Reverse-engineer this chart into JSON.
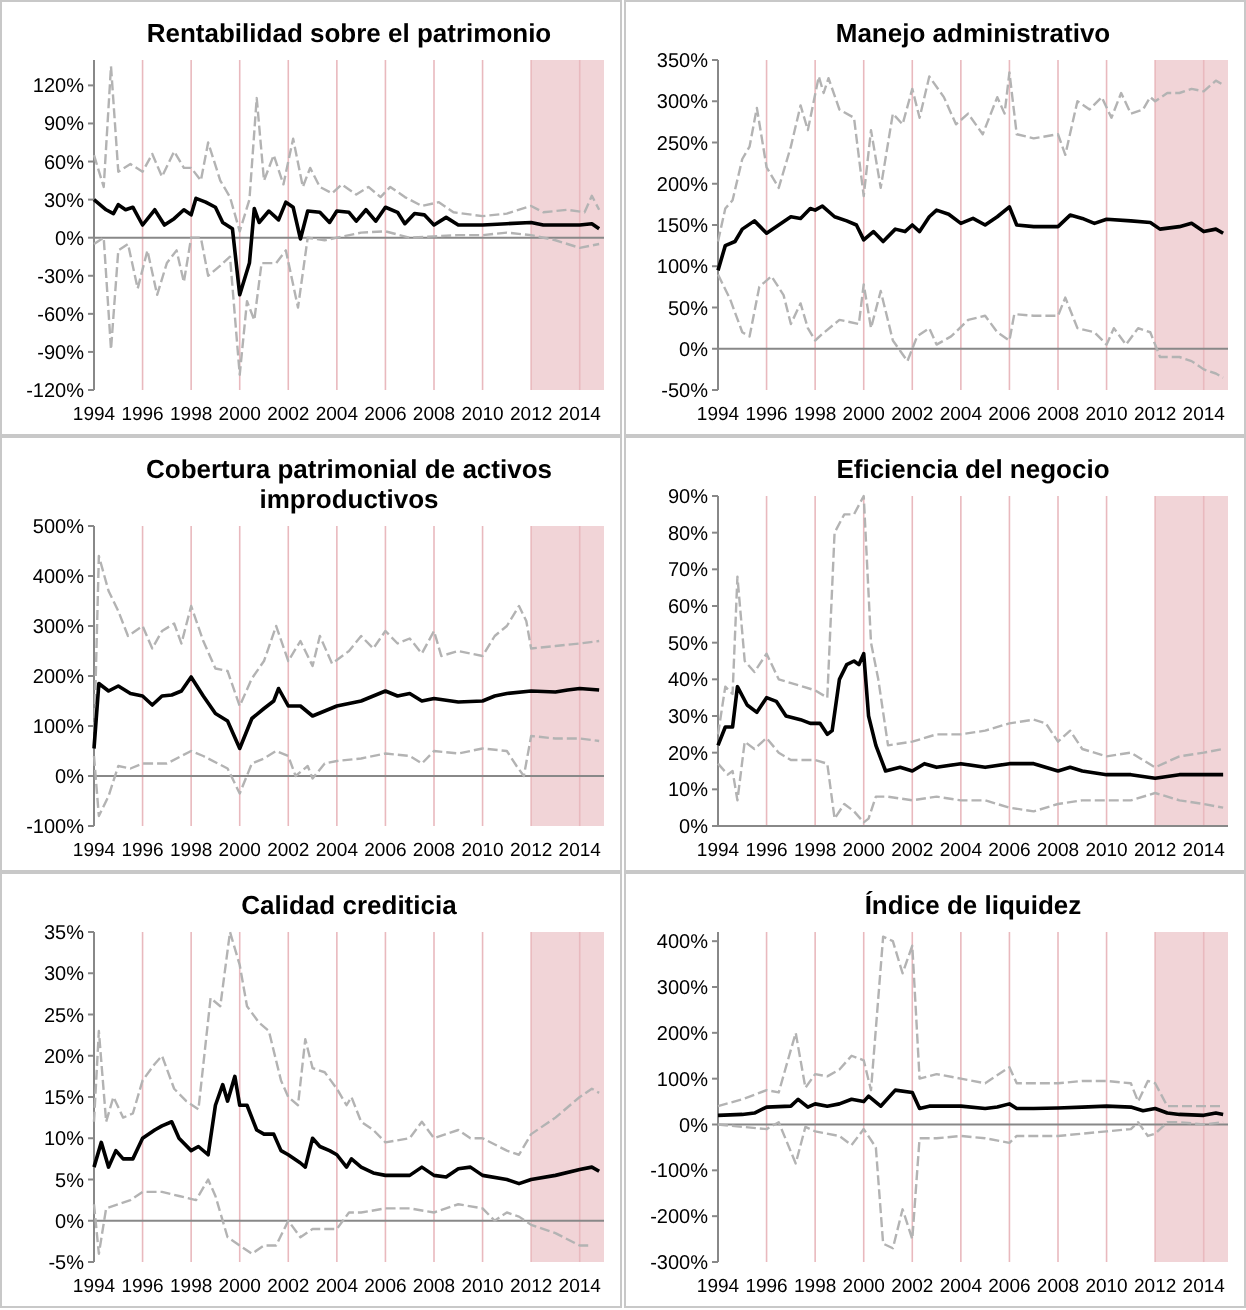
{
  "chart_data": [
    {
      "type": "line",
      "title": "Rentabilidad sobre el patrimonio",
      "grid": "x",
      "xlim": [
        1994,
        2015
      ],
      "xticks": [
        1994,
        1996,
        1998,
        2000,
        2002,
        2004,
        2006,
        2008,
        2010,
        2012,
        2014
      ],
      "ylim": [
        -120,
        140
      ],
      "yticks": [
        {
          "value": -120,
          "label": "-120%"
        },
        {
          "value": -90,
          "label": "-90%"
        },
        {
          "value": -60,
          "label": "-60%"
        },
        {
          "value": -30,
          "label": "-30%"
        },
        {
          "value": 0,
          "label": "0%"
        },
        {
          "value": 30,
          "label": "30%"
        },
        {
          "value": 60,
          "label": "60%"
        },
        {
          "value": 90,
          "label": "90%"
        },
        {
          "value": 120,
          "label": "120%"
        }
      ],
      "bands": [
        {
          "axis": "x",
          "from": 2012,
          "to": 2015,
          "label": null,
          "color": "#efcdd0"
        }
      ],
      "series": [
        {
          "color": "#b3b3b3",
          "line_style": "dashed",
          "x": [
            1994,
            1994.4,
            1994.7,
            1995,
            1995.5,
            1996,
            1996.4,
            1996.8,
            1997.3,
            1997.7,
            1998,
            1998.4,
            1998.7,
            1999.2,
            1999.6,
            2000,
            2000.4,
            2000.7,
            2001,
            2001.4,
            2001.8,
            2002.2,
            2002.6,
            2002.9,
            2003.3,
            2003.8,
            2004.2,
            2004.8,
            2005.3,
            2005.8,
            2006.2,
            2006.8,
            2007.5,
            2008.2,
            2008.8,
            2010,
            2011,
            2012,
            2012.5,
            2013.5,
            2014.2,
            2014.5,
            2014.8
          ],
          "values": [
            65,
            40,
            135,
            52,
            58,
            52,
            66,
            48,
            68,
            55,
            55,
            45,
            75,
            45,
            32,
            5,
            30,
            110,
            45,
            65,
            42,
            78,
            40,
            55,
            40,
            35,
            42,
            34,
            40,
            32,
            40,
            32,
            25,
            28,
            20,
            17,
            19,
            25,
            20,
            22,
            20,
            33,
            22
          ]
        },
        {
          "color": "#b3b3b3",
          "line_style": "dashed",
          "x": [
            1994,
            1994.4,
            1994.7,
            1995,
            1995.4,
            1995.8,
            1996.2,
            1996.6,
            1997,
            1997.4,
            1997.7,
            1998,
            1998.4,
            1998.7,
            1999.2,
            1999.6,
            2000,
            2000.3,
            2000.6,
            2000.9,
            2001.5,
            2001.9,
            2002.4,
            2002.8,
            2003.5,
            2004,
            2005,
            2006,
            2007,
            2008,
            2009,
            2010,
            2011,
            2012,
            2013,
            2014,
            2014.8
          ],
          "values": [
            -5,
            0,
            -88,
            -10,
            -5,
            -40,
            -10,
            -45,
            -20,
            -10,
            -35,
            0,
            0,
            -30,
            -22,
            -15,
            -108,
            -50,
            -65,
            -20,
            -20,
            -10,
            -55,
            0,
            -2,
            0,
            4,
            5,
            0,
            1,
            2,
            2,
            4,
            2,
            -2,
            -8,
            -5
          ]
        },
        {
          "color": "#000000",
          "line_style": "solid",
          "x": [
            1994,
            1994.5,
            1994.8,
            1995,
            1995.3,
            1995.6,
            1996,
            1996.5,
            1996.9,
            1997.3,
            1997.7,
            1998,
            1998.2,
            1998.6,
            1999,
            1999.3,
            1999.7,
            2000,
            2000.4,
            2000.6,
            2000.8,
            2001.2,
            2001.6,
            2001.9,
            2002.2,
            2002.5,
            2002.8,
            2003.3,
            2003.7,
            2004,
            2004.5,
            2004.8,
            2005.2,
            2005.6,
            2006,
            2006.5,
            2006.8,
            2007.2,
            2007.6,
            2008,
            2008.5,
            2009,
            2010,
            2011,
            2012,
            2012.5,
            2013,
            2014,
            2014.5,
            2014.8
          ],
          "values": [
            30,
            22,
            19,
            26,
            22,
            24,
            10,
            22,
            10,
            15,
            22,
            18,
            31,
            28,
            24,
            12,
            7,
            -45,
            -20,
            23,
            12,
            21,
            14,
            28,
            24,
            -1,
            21,
            20,
            12,
            21,
            20,
            13,
            22,
            13,
            24,
            20,
            11,
            19,
            18,
            10,
            16,
            10,
            10,
            11,
            12,
            10,
            10,
            10,
            11,
            7
          ]
        }
      ]
    },
    {
      "type": "line",
      "title": "Manejo administrativo",
      "grid": "x",
      "xlim": [
        1994,
        2015
      ],
      "xticks": [
        1994,
        1996,
        1998,
        2000,
        2002,
        2004,
        2006,
        2008,
        2010,
        2012,
        2014
      ],
      "ylim": [
        -50,
        350
      ],
      "yticks": [
        {
          "value": -50,
          "label": "-50%"
        },
        {
          "value": 0,
          "label": "0%"
        },
        {
          "value": 50,
          "label": "50%"
        },
        {
          "value": 100,
          "label": "100%"
        },
        {
          "value": 150,
          "label": "150%"
        },
        {
          "value": 200,
          "label": "200%"
        },
        {
          "value": 250,
          "label": "250%"
        },
        {
          "value": 300,
          "label": "300%"
        },
        {
          "value": 350,
          "label": "350%"
        }
      ],
      "bands": [
        {
          "axis": "x",
          "from": 2012,
          "to": 2015,
          "label": null,
          "color": "#efcdd0"
        }
      ],
      "series": [
        {
          "color": "#b3b3b3",
          "line_style": "dashed",
          "x": [
            1994,
            1994.3,
            1994.6,
            1995,
            1995.3,
            1995.6,
            1996,
            1996.5,
            1997,
            1997.4,
            1997.7,
            1998.15,
            1998.35,
            1998.55,
            1999,
            1999.6,
            2000,
            2000.3,
            2000.7,
            2001.2,
            2001.6,
            2002,
            2002.3,
            2002.7,
            2003.3,
            2003.8,
            2004.3,
            2004.9,
            2005.5,
            2005.8,
            2006,
            2006.3,
            2007,
            2008,
            2008.3,
            2008.8,
            2009.3,
            2009.8,
            2010.2,
            2010.6,
            2011,
            2011.5,
            2011.8,
            2012,
            2012.5,
            2013,
            2013.5,
            2014,
            2014.5,
            2014.8
          ],
          "values": [
            130,
            170,
            180,
            230,
            245,
            292,
            220,
            195,
            245,
            295,
            265,
            330,
            310,
            328,
            290,
            280,
            185,
            265,
            195,
            285,
            272,
            315,
            280,
            330,
            305,
            272,
            285,
            260,
            305,
            285,
            335,
            260,
            255,
            260,
            235,
            300,
            290,
            305,
            280,
            310,
            285,
            290,
            305,
            300,
            310,
            310,
            315,
            312,
            325,
            320
          ]
        },
        {
          "color": "#b3b3b3",
          "line_style": "dashed",
          "x": [
            1994,
            1994.5,
            1995,
            1995.3,
            1995.7,
            1996.2,
            1996.7,
            1997,
            1997.4,
            1997.7,
            1998,
            1998.3,
            1999,
            1999.8,
            2000,
            2000.3,
            2000.7,
            2001.2,
            2001.8,
            2002.2,
            2002.7,
            2003,
            2003.6,
            2004.3,
            2005,
            2005.5,
            2006,
            2006.2,
            2007,
            2008,
            2008.3,
            2008.8,
            2009.5,
            2010,
            2010.3,
            2010.8,
            2011.3,
            2011.8,
            2012.2,
            2013,
            2013.5,
            2014,
            2014.5,
            2014.8
          ],
          "values": [
            90,
            60,
            20,
            15,
            75,
            88,
            65,
            30,
            55,
            25,
            10,
            18,
            35,
            30,
            78,
            25,
            70,
            10,
            -15,
            15,
            25,
            5,
            15,
            35,
            40,
            20,
            10,
            42,
            40,
            40,
            62,
            25,
            20,
            5,
            25,
            5,
            25,
            20,
            -10,
            -10,
            -15,
            -25,
            -30,
            -35
          ]
        },
        {
          "color": "#000000",
          "line_style": "solid",
          "x": [
            1994,
            1994.3,
            1994.7,
            1995,
            1995.5,
            1996,
            1996.5,
            1997,
            1997.4,
            1997.8,
            1998,
            1998.3,
            1998.8,
            1999.3,
            1999.7,
            2000,
            2000.4,
            2000.8,
            2001.3,
            2001.7,
            2002,
            2002.3,
            2002.7,
            2003,
            2003.5,
            2004,
            2004.5,
            2005,
            2005.5,
            2006,
            2006.3,
            2007,
            2008,
            2008.5,
            2009,
            2009.5,
            2010,
            2011,
            2011.8,
            2012.2,
            2013,
            2013.5,
            2014,
            2014.5,
            2014.8
          ],
          "values": [
            95,
            125,
            130,
            145,
            155,
            140,
            150,
            160,
            158,
            170,
            168,
            173,
            160,
            155,
            150,
            132,
            142,
            130,
            145,
            142,
            150,
            142,
            160,
            168,
            163,
            152,
            158,
            150,
            160,
            172,
            150,
            148,
            148,
            162,
            158,
            152,
            157,
            155,
            153,
            145,
            148,
            152,
            142,
            145,
            140
          ]
        }
      ]
    },
    {
      "type": "line",
      "title": "Cobertura patrimonial de activos improductivos",
      "grid": "x",
      "xlim": [
        1994,
        2015
      ],
      "xticks": [
        1994,
        1996,
        1998,
        2000,
        2002,
        2004,
        2006,
        2008,
        2010,
        2012,
        2014
      ],
      "ylim": [
        -100,
        500
      ],
      "yticks": [
        {
          "value": -100,
          "label": "-100%"
        },
        {
          "value": 0,
          "label": "0%"
        },
        {
          "value": 100,
          "label": "100%"
        },
        {
          "value": 200,
          "label": "200%"
        },
        {
          "value": 300,
          "label": "300%"
        },
        {
          "value": 400,
          "label": "400%"
        },
        {
          "value": 500,
          "label": "500%"
        }
      ],
      "bands": [
        {
          "axis": "x",
          "from": 2012,
          "to": 2015,
          "label": null,
          "color": "#efcdd0"
        }
      ],
      "series": [
        {
          "color": "#b3b3b3",
          "line_style": "dashed",
          "x": [
            1994,
            1994.2,
            1994.6,
            1995,
            1995.4,
            1996,
            1996.4,
            1996.8,
            1997.3,
            1997.6,
            1998,
            1998.5,
            1999,
            1999.5,
            2000,
            2000.5,
            2001,
            2001.5,
            2002,
            2002.5,
            2003,
            2003.3,
            2003.8,
            2004.5,
            2005,
            2005.5,
            2006,
            2006.5,
            2007,
            2007.5,
            2008,
            2008.3,
            2009,
            2010,
            2010.5,
            2011,
            2011.5,
            2011.8,
            2012,
            2013,
            2014,
            2014.8
          ],
          "values": [
            60,
            440,
            370,
            330,
            280,
            300,
            255,
            290,
            305,
            265,
            340,
            270,
            215,
            210,
            140,
            195,
            230,
            300,
            230,
            270,
            220,
            280,
            225,
            250,
            280,
            255,
            290,
            265,
            275,
            245,
            290,
            240,
            250,
            240,
            280,
            300,
            340,
            310,
            255,
            260,
            265,
            270
          ]
        },
        {
          "color": "#b3b3b3",
          "line_style": "dashed",
          "x": [
            1994,
            1994.2,
            1994.6,
            1995,
            1995.5,
            1996,
            1997,
            1998,
            1998.5,
            1999.5,
            2000,
            2000.5,
            2001,
            2001.5,
            2002,
            2002.3,
            2002.8,
            2003,
            2003.5,
            2004,
            2005,
            2006,
            2007,
            2007.5,
            2008,
            2009,
            2010,
            2011,
            2011.4,
            2011.7,
            2012,
            2013,
            2014,
            2014.8
          ],
          "values": [
            40,
            -80,
            -40,
            20,
            15,
            25,
            25,
            50,
            40,
            15,
            -35,
            25,
            35,
            50,
            40,
            0,
            20,
            -5,
            25,
            30,
            35,
            45,
            40,
            25,
            50,
            45,
            55,
            50,
            20,
            0,
            80,
            75,
            75,
            70
          ]
        },
        {
          "color": "#000000",
          "line_style": "solid",
          "x": [
            1994,
            1994.2,
            1994.6,
            1995,
            1995.5,
            1996,
            1996.4,
            1996.8,
            1997.2,
            1997.6,
            1998,
            1998.5,
            1999,
            1999.5,
            2000,
            2000.5,
            2001,
            2001.4,
            2001.6,
            2002,
            2002.5,
            2003,
            2003.5,
            2004,
            2005,
            2005.5,
            2006,
            2006.5,
            2007,
            2007.5,
            2008,
            2009,
            2010,
            2010.5,
            2011,
            2012,
            2013,
            2013.5,
            2014,
            2014.8
          ],
          "values": [
            55,
            185,
            170,
            180,
            165,
            160,
            142,
            160,
            162,
            170,
            198,
            160,
            125,
            110,
            55,
            115,
            135,
            150,
            175,
            140,
            140,
            120,
            130,
            140,
            150,
            160,
            170,
            160,
            165,
            150,
            155,
            148,
            150,
            160,
            165,
            170,
            168,
            172,
            175,
            172
          ]
        }
      ]
    },
    {
      "type": "line",
      "title": "Eficiencia del negocio",
      "grid": "x",
      "xlim": [
        1994,
        2015
      ],
      "xticks": [
        1994,
        1996,
        1998,
        2000,
        2002,
        2004,
        2006,
        2008,
        2010,
        2012,
        2014
      ],
      "ylim": [
        0,
        90
      ],
      "yticks": [
        {
          "value": 0,
          "label": "0%"
        },
        {
          "value": 10,
          "label": "10%"
        },
        {
          "value": 20,
          "label": "20%"
        },
        {
          "value": 30,
          "label": "30%"
        },
        {
          "value": 40,
          "label": "40%"
        },
        {
          "value": 50,
          "label": "50%"
        },
        {
          "value": 60,
          "label": "60%"
        },
        {
          "value": 70,
          "label": "70%"
        },
        {
          "value": 80,
          "label": "80%"
        },
        {
          "value": 90,
          "label": "90%"
        }
      ],
      "bands": [
        {
          "axis": "x",
          "from": 2012,
          "to": 2015,
          "label": null,
          "color": "#efcdd0"
        }
      ],
      "series": [
        {
          "color": "#b3b3b3",
          "line_style": "dashed",
          "x": [
            1994,
            1994.3,
            1994.6,
            1994.8,
            1995.1,
            1995.5,
            1996,
            1996.5,
            1997.5,
            1998,
            1998.5,
            1998.8,
            1999.2,
            1999.6,
            2000,
            2000.3,
            2000.6,
            2001,
            2002,
            2003,
            2004,
            2005,
            2006,
            2007,
            2007.5,
            2008,
            2008.5,
            2009,
            2010,
            2011,
            2012,
            2013,
            2014,
            2014.8
          ],
          "values": [
            25,
            38,
            36,
            68,
            45,
            42,
            47,
            40,
            38,
            37,
            35,
            80,
            85,
            85,
            90,
            50,
            40,
            22,
            23,
            25,
            25,
            26,
            28,
            29,
            28,
            23,
            26,
            21,
            19,
            20,
            16,
            19,
            20,
            21
          ]
        },
        {
          "color": "#b3b3b3",
          "line_style": "dashed",
          "x": [
            1994,
            1994.4,
            1994.6,
            1994.8,
            1995.1,
            1995.5,
            1996,
            1996.5,
            1997,
            1998,
            1998.5,
            1998.8,
            1999.2,
            1999.6,
            2000,
            2000.2,
            2000.5,
            2001,
            2002,
            2003,
            2004,
            2005,
            2006,
            2007,
            2008,
            2009,
            2010,
            2011,
            2012,
            2013,
            2014,
            2014.8
          ],
          "values": [
            17,
            14,
            15,
            7,
            23,
            21,
            24,
            20,
            18,
            18,
            17,
            2,
            6,
            4,
            1,
            2,
            8,
            8,
            7,
            8,
            7,
            7,
            5,
            4,
            6,
            7,
            7,
            7,
            9,
            7,
            6,
            5
          ]
        },
        {
          "color": "#000000",
          "line_style": "solid",
          "x": [
            1994,
            1994.3,
            1994.6,
            1994.8,
            1995.2,
            1995.6,
            1996,
            1996.4,
            1996.8,
            1997.4,
            1997.8,
            1998.2,
            1998.5,
            1998.7,
            1999,
            1999.3,
            1999.6,
            1999.8,
            2000,
            2000.2,
            2000.5,
            2000.9,
            2001.5,
            2002,
            2002.5,
            2003,
            2004,
            2005,
            2006,
            2007,
            2008,
            2008.5,
            2009,
            2010,
            2011,
            2012,
            2013,
            2014,
            2014.8
          ],
          "values": [
            22,
            27,
            27,
            38,
            33,
            31,
            35,
            34,
            30,
            29,
            28,
            28,
            25,
            26,
            40,
            44,
            45,
            44,
            47,
            30,
            22,
            15,
            16,
            15,
            17,
            16,
            17,
            16,
            17,
            17,
            15,
            16,
            15,
            14,
            14,
            13,
            14,
            14,
            14
          ]
        }
      ]
    },
    {
      "type": "line",
      "title": "Calidad crediticia",
      "grid": "x",
      "xlim": [
        1994,
        2015
      ],
      "xticks": [
        1994,
        1996,
        1998,
        2000,
        2002,
        2004,
        2006,
        2008,
        2010,
        2012,
        2014
      ],
      "ylim": [
        -5,
        35
      ],
      "yticks": [
        {
          "value": -5,
          "label": "-5%"
        },
        {
          "value": 0,
          "label": "0%"
        },
        {
          "value": 5,
          "label": "5%"
        },
        {
          "value": 10,
          "label": "10%"
        },
        {
          "value": 15,
          "label": "15%"
        },
        {
          "value": 20,
          "label": "20%"
        },
        {
          "value": 25,
          "label": "25%"
        },
        {
          "value": 30,
          "label": "30%"
        },
        {
          "value": 35,
          "label": "35%"
        }
      ],
      "bands": [
        {
          "axis": "x",
          "from": 2012,
          "to": 2015,
          "label": null,
          "color": "#efcdd0"
        }
      ],
      "series": [
        {
          "color": "#b3b3b3",
          "line_style": "dashed",
          "x": [
            1994,
            1994.2,
            1994.5,
            1994.8,
            1995.2,
            1995.6,
            1996,
            1996.5,
            1996.8,
            1997.3,
            1997.8,
            1998.3,
            1998.8,
            1999.2,
            1999.6,
            2000,
            2000.3,
            2000.8,
            2001.2,
            2001.7,
            2002,
            2002.4,
            2002.7,
            2003,
            2003.5,
            2004,
            2004.4,
            2004.6,
            2005,
            2005.5,
            2006,
            2007,
            2007.5,
            2008,
            2009,
            2009.5,
            2010,
            2011,
            2011.5,
            2012,
            2013,
            2014,
            2014.5,
            2014.8
          ],
          "values": [
            12,
            23,
            12,
            15,
            12.5,
            13,
            17,
            19,
            20,
            16,
            14.5,
            13.5,
            27,
            26,
            35,
            31,
            26,
            24,
            23,
            17,
            15,
            14,
            22,
            18.5,
            18,
            16,
            14,
            15,
            12,
            11,
            9.5,
            10,
            12,
            10,
            11,
            10,
            10,
            8.5,
            8,
            10.5,
            12.5,
            15,
            16,
            15.5
          ]
        },
        {
          "color": "#b3b3b3",
          "line_style": "dashed",
          "x": [
            1994,
            1994.2,
            1994.5,
            1995,
            1995.5,
            1996,
            1996.8,
            1997.5,
            1998.2,
            1998.7,
            1999,
            1999.5,
            2000,
            2000.5,
            2001,
            2001.5,
            2002,
            2002.5,
            2003,
            2003.5,
            2004,
            2004.5,
            2005,
            2006,
            2007,
            2008,
            2009,
            2010,
            2010.5,
            2011,
            2011.5,
            2012,
            2013,
            2014,
            2014.5
          ],
          "values": [
            2,
            -4,
            1.5,
            2,
            2.5,
            3.5,
            3.5,
            3,
            2.5,
            5,
            3,
            -2,
            -3,
            -4,
            -3,
            -3,
            0,
            -2,
            -1,
            -1,
            -1,
            1,
            1,
            1.5,
            1.5,
            1,
            2,
            1.5,
            0,
            1,
            0.5,
            -0.5,
            -1.5,
            -3,
            -3
          ]
        },
        {
          "color": "#000000",
          "line_style": "solid",
          "x": [
            1994,
            1994.3,
            1994.6,
            1994.9,
            1995.2,
            1995.6,
            1996,
            1996.5,
            1996.8,
            1997.2,
            1997.5,
            1998,
            1998.3,
            1998.7,
            1999,
            1999.3,
            1999.5,
            1999.8,
            2000,
            2000.3,
            2000.7,
            2001,
            2001.4,
            2001.7,
            2002,
            2002.5,
            2002.7,
            2003,
            2003.3,
            2003.7,
            2004,
            2004.4,
            2004.6,
            2005,
            2005.5,
            2006,
            2007,
            2007.5,
            2008,
            2008.5,
            2009,
            2009.5,
            2010,
            2011,
            2011.5,
            2012,
            2013,
            2014,
            2014.5,
            2014.8
          ],
          "values": [
            6.5,
            9.5,
            6.5,
            8.5,
            7.5,
            7.5,
            10,
            11,
            11.5,
            12,
            10,
            8.5,
            9,
            8,
            14,
            16.5,
            14.5,
            17.5,
            14,
            14,
            11,
            10.5,
            10.5,
            8.5,
            8,
            7,
            6.5,
            10,
            9,
            8.5,
            8,
            6.5,
            7.5,
            6.5,
            5.8,
            5.5,
            5.5,
            6.5,
            5.5,
            5.3,
            6.3,
            6.5,
            5.5,
            5,
            4.5,
            5,
            5.5,
            6.2,
            6.5,
            6
          ]
        }
      ]
    },
    {
      "type": "line",
      "title": "Índice de liquidez",
      "grid": "x",
      "xlim": [
        1994,
        2015
      ],
      "xticks": [
        1994,
        1996,
        1998,
        2000,
        2002,
        2004,
        2006,
        2008,
        2010,
        2012,
        2014
      ],
      "ylim": [
        -300,
        420
      ],
      "yticks": [
        {
          "value": -300,
          "label": "-300%"
        },
        {
          "value": -200,
          "label": "-200%"
        },
        {
          "value": -100,
          "label": "-100%"
        },
        {
          "value": 0,
          "label": "0%"
        },
        {
          "value": 100,
          "label": "100%"
        },
        {
          "value": 200,
          "label": "200%"
        },
        {
          "value": 300,
          "label": "300%"
        },
        {
          "value": 400,
          "label": "400%"
        }
      ],
      "bands": [
        {
          "axis": "x",
          "from": 2012,
          "to": 2015,
          "label": null,
          "color": "#efcdd0"
        }
      ],
      "series": [
        {
          "color": "#b3b3b3",
          "line_style": "dashed",
          "x": [
            1994,
            1995,
            1996,
            1996.5,
            1997.2,
            1997.6,
            1998,
            1998.5,
            1999,
            1999.5,
            2000,
            2000.3,
            2000.8,
            2001.2,
            2001.6,
            2002,
            2002.3,
            2003,
            2004,
            2005,
            2006,
            2006.3,
            2007,
            2008,
            2009,
            2010,
            2011,
            2011.3,
            2011.7,
            2012,
            2012.5,
            2013,
            2014,
            2014.8
          ],
          "values": [
            40,
            55,
            75,
            70,
            200,
            80,
            110,
            105,
            120,
            150,
            140,
            75,
            410,
            400,
            330,
            390,
            100,
            110,
            100,
            90,
            125,
            90,
            90,
            90,
            95,
            95,
            90,
            50,
            95,
            90,
            40,
            40,
            40,
            40
          ]
        },
        {
          "color": "#b3b3b3",
          "line_style": "dashed",
          "x": [
            1994,
            1995,
            1996,
            1996.5,
            1997.2,
            1997.6,
            1998,
            1999,
            1999.5,
            2000,
            2000.5,
            2000.8,
            2001.2,
            2001.6,
            2002,
            2002.3,
            2003,
            2004,
            2005,
            2006,
            2006.3,
            2007,
            2008,
            2009,
            2010,
            2011,
            2011.3,
            2011.7,
            2012,
            2012.5,
            2013,
            2014,
            2014.8
          ],
          "values": [
            0,
            -5,
            -10,
            5,
            -85,
            -5,
            -15,
            -25,
            -45,
            -10,
            -50,
            -260,
            -270,
            -185,
            -250,
            -30,
            -30,
            -25,
            -30,
            -40,
            -25,
            -25,
            -25,
            -20,
            -15,
            -10,
            5,
            -25,
            -20,
            5,
            5,
            0,
            5
          ]
        },
        {
          "color": "#000000",
          "line_style": "solid",
          "x": [
            1994,
            1995,
            1995.5,
            1996,
            1997,
            1997.3,
            1997.7,
            1998,
            1998.5,
            1999,
            1999.5,
            2000,
            2000.2,
            2000.7,
            2001.3,
            2002,
            2002.3,
            2002.7,
            2003,
            2004,
            2005,
            2005.5,
            2006,
            2006.3,
            2007,
            2008,
            2009,
            2010,
            2011,
            2011.5,
            2012,
            2012.5,
            2013,
            2014,
            2014.5,
            2014.8
          ],
          "values": [
            20,
            22,
            25,
            38,
            40,
            55,
            38,
            45,
            40,
            45,
            55,
            50,
            62,
            40,
            75,
            70,
            35,
            40,
            40,
            40,
            35,
            38,
            45,
            35,
            35,
            36,
            38,
            40,
            38,
            30,
            35,
            25,
            22,
            20,
            25,
            22
          ]
        }
      ]
    }
  ]
}
